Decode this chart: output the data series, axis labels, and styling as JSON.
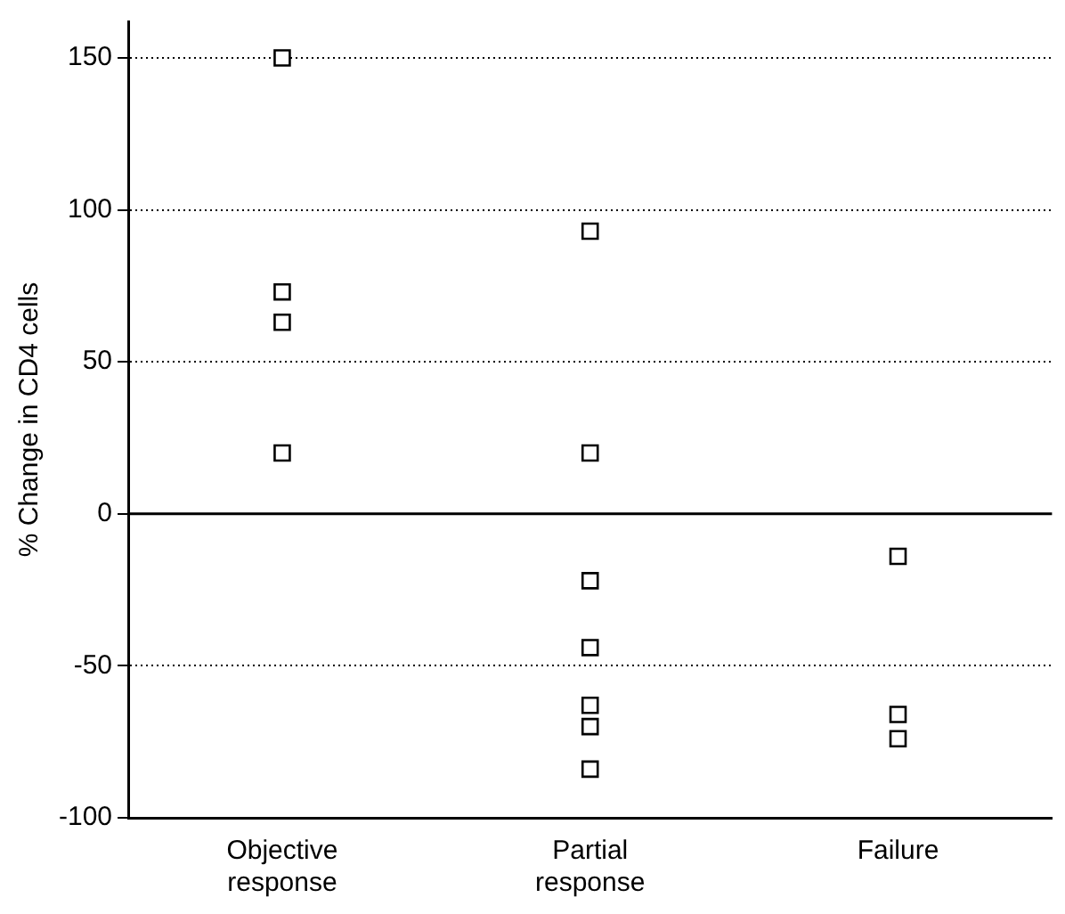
{
  "chart_data": {
    "type": "scatter",
    "ylabel": "% Change in CD4 cells",
    "categories": [
      "Objective response",
      "Partial response",
      "Failure"
    ],
    "series": [
      {
        "color": "#000000",
        "x": [
          "Objective response",
          "Objective response",
          "Objective response",
          "Objective response",
          "Partial response",
          "Partial response",
          "Partial response",
          "Partial response",
          "Partial response",
          "Partial response",
          "Partial response",
          "Failure",
          "Failure",
          "Failure"
        ],
        "values": [
          150,
          73,
          63,
          20,
          93,
          20,
          -22,
          -44,
          -63,
          -70,
          -84,
          -14,
          -66,
          -74
        ]
      }
    ],
    "ylim": [
      -100,
      162
    ],
    "yticks": [
      -100,
      -50,
      0,
      50,
      100,
      150
    ],
    "grid": "y",
    "marker": "square",
    "legend": false,
    "ref_lines": [
      {
        "axis": "y",
        "value": 0,
        "line_style": "solid",
        "color": "#000000"
      }
    ]
  }
}
